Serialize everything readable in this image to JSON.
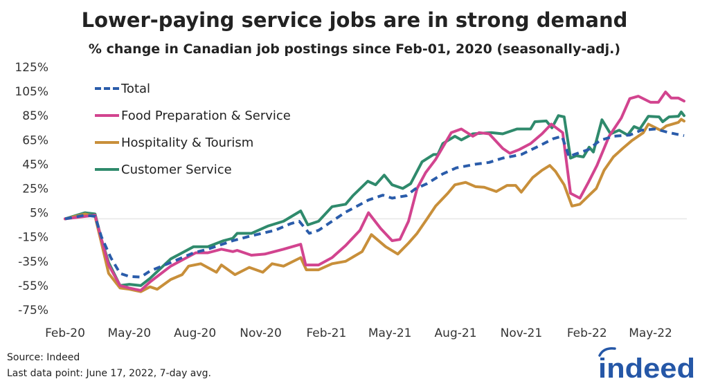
{
  "title": "Lower-paying service jobs are in strong demand",
  "subtitle": "% change in Canadian job postings since Feb-01, 2020 (seasonally-adj.)",
  "source": "Source: Indeed",
  "note": "Last data point: June 17, 2022, 7-day avg.",
  "logo": {
    "text": "indeed",
    "color": "#2557a7"
  },
  "chart_data": {
    "type": "line",
    "title": "Lower-paying service jobs are in strong demand",
    "subtitle": "% change in Canadian job postings since Feb-01, 2020 (seasonally-adj.)",
    "xlabel": "",
    "ylabel": "",
    "xlim": [
      "2020-02-01",
      "2022-06-17"
    ],
    "ylim": [
      -75,
      125
    ],
    "yticks": [
      "125%",
      "105%",
      "85%",
      "65%",
      "45%",
      "25%",
      "5%",
      "-15%",
      "-35%",
      "-55%",
      "-75%"
    ],
    "ytick_values": [
      125,
      105,
      85,
      65,
      45,
      25,
      5,
      -15,
      -35,
      -55,
      -75
    ],
    "xticks": [
      "Feb-20",
      "May-20",
      "Aug-20",
      "Nov-20",
      "Feb-21",
      "May-21",
      "Aug-21",
      "Nov-21",
      "Feb-22",
      "May-22"
    ],
    "xtick_dates": [
      "2020-02-01",
      "2020-05-01",
      "2020-08-01",
      "2020-11-01",
      "2021-02-01",
      "2021-05-01",
      "2021-08-01",
      "2021-11-01",
      "2022-02-01",
      "2022-05-01"
    ],
    "grid": "zero line only",
    "legend": "top-left",
    "series": [
      {
        "name": "Total",
        "color": "#2a5caa",
        "dashed": true,
        "points": [
          [
            "2020-02-01",
            0
          ],
          [
            "2020-02-29",
            3
          ],
          [
            "2020-03-14",
            2
          ],
          [
            "2020-03-23",
            -15
          ],
          [
            "2020-04-05",
            -32
          ],
          [
            "2020-04-18",
            -45
          ],
          [
            "2020-05-01",
            -47.5
          ],
          [
            "2020-05-17",
            -48
          ],
          [
            "2020-05-30",
            -43
          ],
          [
            "2020-06-28",
            -36
          ],
          [
            "2020-07-30",
            -28
          ],
          [
            "2020-08-19",
            -25
          ],
          [
            "2020-09-23",
            -18
          ],
          [
            "2020-10-19",
            -14
          ],
          [
            "2020-11-21",
            -9.5
          ],
          [
            "2020-12-13",
            -4
          ],
          [
            "2020-12-25",
            -2
          ],
          [
            "2021-01-08",
            -12
          ],
          [
            "2021-01-21",
            -9.5
          ],
          [
            "2021-02-09",
            -2
          ],
          [
            "2021-02-28",
            5.5
          ],
          [
            "2021-03-13",
            9.5
          ],
          [
            "2021-04-01",
            15.5
          ],
          [
            "2021-04-21",
            19.5
          ],
          [
            "2021-05-04",
            17
          ],
          [
            "2021-05-24",
            19
          ],
          [
            "2021-06-05",
            24.5
          ],
          [
            "2021-06-22",
            29
          ],
          [
            "2021-07-14",
            37
          ],
          [
            "2021-08-02",
            42
          ],
          [
            "2021-08-29",
            45
          ],
          [
            "2021-09-17",
            46.5
          ],
          [
            "2021-10-06",
            50
          ],
          [
            "2021-11-01",
            53
          ],
          [
            "2021-11-24",
            59.5
          ],
          [
            "2021-12-16",
            66
          ],
          [
            "2021-12-28",
            68
          ],
          [
            "2022-01-07",
            51
          ],
          [
            "2022-01-14",
            53
          ],
          [
            "2022-02-03",
            57
          ],
          [
            "2022-02-19",
            64.5
          ],
          [
            "2022-03-10",
            68
          ],
          [
            "2022-04-02",
            69
          ],
          [
            "2022-04-18",
            73
          ],
          [
            "2022-05-08",
            74
          ],
          [
            "2022-05-27",
            71
          ],
          [
            "2022-06-17",
            68.5
          ]
        ]
      },
      {
        "name": "Food Preparation & Service",
        "color": "#d2448f",
        "dashed": false,
        "points": [
          [
            "2020-02-01",
            0
          ],
          [
            "2020-02-29",
            2
          ],
          [
            "2020-03-14",
            3
          ],
          [
            "2020-03-23",
            -17
          ],
          [
            "2020-04-02",
            -38
          ],
          [
            "2020-04-18",
            -55
          ],
          [
            "2020-05-01",
            -57
          ],
          [
            "2020-05-17",
            -59
          ],
          [
            "2020-05-30",
            -52
          ],
          [
            "2020-06-28",
            -39
          ],
          [
            "2020-08-02",
            -28
          ],
          [
            "2020-08-19",
            -28
          ],
          [
            "2020-09-07",
            -25
          ],
          [
            "2020-09-23",
            -27
          ],
          [
            "2020-09-29",
            -26
          ],
          [
            "2020-10-19",
            -30
          ],
          [
            "2020-11-07",
            -29
          ],
          [
            "2020-12-03",
            -25
          ],
          [
            "2020-12-27",
            -21
          ],
          [
            "2021-01-03",
            -38
          ],
          [
            "2021-01-21",
            -38
          ],
          [
            "2021-02-09",
            -32
          ],
          [
            "2021-02-28",
            -22
          ],
          [
            "2021-03-20",
            -9.5
          ],
          [
            "2021-04-01",
            5
          ],
          [
            "2021-04-18",
            -8
          ],
          [
            "2021-05-04",
            -18
          ],
          [
            "2021-05-15",
            -17
          ],
          [
            "2021-05-27",
            -2
          ],
          [
            "2021-06-08",
            25
          ],
          [
            "2021-06-20",
            38
          ],
          [
            "2021-07-04",
            49
          ],
          [
            "2021-07-26",
            71
          ],
          [
            "2021-08-09",
            74
          ],
          [
            "2021-08-25",
            68
          ],
          [
            "2021-09-03",
            71
          ],
          [
            "2021-09-17",
            70
          ],
          [
            "2021-10-06",
            58
          ],
          [
            "2021-10-16",
            54
          ],
          [
            "2021-10-29",
            57
          ],
          [
            "2021-11-14",
            62
          ],
          [
            "2021-11-30",
            70
          ],
          [
            "2021-12-13",
            78
          ],
          [
            "2021-12-29",
            71
          ],
          [
            "2022-01-09",
            21
          ],
          [
            "2022-01-22",
            17
          ],
          [
            "2022-02-03",
            30
          ],
          [
            "2022-02-15",
            44
          ],
          [
            "2022-03-04",
            68
          ],
          [
            "2022-03-21",
            83
          ],
          [
            "2022-04-02",
            99
          ],
          [
            "2022-04-14",
            101
          ],
          [
            "2022-05-01",
            96
          ],
          [
            "2022-05-12",
            96
          ],
          [
            "2022-05-22",
            104.5
          ],
          [
            "2022-05-30",
            99.5
          ],
          [
            "2022-06-09",
            99.5
          ],
          [
            "2022-06-17",
            97
          ]
        ]
      },
      {
        "name": "Hospitality & Tourism",
        "color": "#c88f3a",
        "dashed": false,
        "points": [
          [
            "2020-02-01",
            0
          ],
          [
            "2020-02-29",
            4
          ],
          [
            "2020-03-14",
            2
          ],
          [
            "2020-03-23",
            -20
          ],
          [
            "2020-04-02",
            -45
          ],
          [
            "2020-04-18",
            -57
          ],
          [
            "2020-05-01",
            -58
          ],
          [
            "2020-05-17",
            -60
          ],
          [
            "2020-05-30",
            -56
          ],
          [
            "2020-06-09",
            -58
          ],
          [
            "2020-06-28",
            -50
          ],
          [
            "2020-07-14",
            -46
          ],
          [
            "2020-07-23",
            -39
          ],
          [
            "2020-08-09",
            -37
          ],
          [
            "2020-08-31",
            -44
          ],
          [
            "2020-09-07",
            -38
          ],
          [
            "2020-09-26",
            -46
          ],
          [
            "2020-10-16",
            -40
          ],
          [
            "2020-11-04",
            -44
          ],
          [
            "2020-11-17",
            -37
          ],
          [
            "2020-12-03",
            -39
          ],
          [
            "2020-12-27",
            -32
          ],
          [
            "2021-01-04",
            -42
          ],
          [
            "2021-01-21",
            -42
          ],
          [
            "2021-02-09",
            -37
          ],
          [
            "2021-02-28",
            -35
          ],
          [
            "2021-03-23",
            -27
          ],
          [
            "2021-04-05",
            -13
          ],
          [
            "2021-04-25",
            -23
          ],
          [
            "2021-05-12",
            -29
          ],
          [
            "2021-05-27",
            -20
          ],
          [
            "2021-06-08",
            -12
          ],
          [
            "2021-06-22",
            0
          ],
          [
            "2021-07-04",
            10.5
          ],
          [
            "2021-07-21",
            21
          ],
          [
            "2021-07-31",
            28
          ],
          [
            "2021-08-15",
            30
          ],
          [
            "2021-08-29",
            26.5
          ],
          [
            "2021-09-10",
            26
          ],
          [
            "2021-09-27",
            22.5
          ],
          [
            "2021-10-12",
            27.5
          ],
          [
            "2021-10-24",
            27.5
          ],
          [
            "2021-11-01",
            22
          ],
          [
            "2021-11-17",
            34
          ],
          [
            "2021-11-30",
            40
          ],
          [
            "2021-12-11",
            44
          ],
          [
            "2021-12-19",
            39
          ],
          [
            "2021-12-31",
            28
          ],
          [
            "2022-01-11",
            10.5
          ],
          [
            "2022-01-22",
            12
          ],
          [
            "2022-02-05",
            20
          ],
          [
            "2022-02-14",
            25
          ],
          [
            "2022-02-25",
            40
          ],
          [
            "2022-03-10",
            51
          ],
          [
            "2022-03-23",
            58
          ],
          [
            "2022-04-05",
            64.5
          ],
          [
            "2022-04-21",
            71
          ],
          [
            "2022-04-28",
            78
          ],
          [
            "2022-05-15",
            73
          ],
          [
            "2022-05-23",
            76.5
          ],
          [
            "2022-06-09",
            79.5
          ],
          [
            "2022-06-13",
            82
          ],
          [
            "2022-06-17",
            80.5
          ]
        ]
      },
      {
        "name": "Customer Service",
        "color": "#2f8a6c",
        "dashed": false,
        "points": [
          [
            "2020-02-01",
            0
          ],
          [
            "2020-02-29",
            5
          ],
          [
            "2020-03-14",
            4
          ],
          [
            "2020-03-23",
            -17
          ],
          [
            "2020-04-02",
            -36
          ],
          [
            "2020-04-18",
            -55
          ],
          [
            "2020-05-01",
            -54
          ],
          [
            "2020-05-17",
            -55
          ],
          [
            "2020-05-30",
            -49
          ],
          [
            "2020-06-28",
            -33
          ],
          [
            "2020-07-30",
            -23
          ],
          [
            "2020-08-19",
            -23
          ],
          [
            "2020-09-10",
            -18
          ],
          [
            "2020-09-23",
            -16
          ],
          [
            "2020-09-29",
            -12
          ],
          [
            "2020-10-19",
            -12
          ],
          [
            "2020-11-11",
            -6
          ],
          [
            "2020-12-03",
            -2
          ],
          [
            "2020-12-27",
            6.5
          ],
          [
            "2021-01-06",
            -5
          ],
          [
            "2021-01-21",
            -2
          ],
          [
            "2021-02-09",
            10
          ],
          [
            "2021-02-28",
            12
          ],
          [
            "2021-03-10",
            19
          ],
          [
            "2021-03-31",
            31
          ],
          [
            "2021-04-11",
            28
          ],
          [
            "2021-04-23",
            36
          ],
          [
            "2021-05-04",
            28
          ],
          [
            "2021-05-19",
            25
          ],
          [
            "2021-05-30",
            29
          ],
          [
            "2021-06-15",
            47
          ],
          [
            "2021-07-01",
            53
          ],
          [
            "2021-07-07",
            53
          ],
          [
            "2021-07-14",
            62
          ],
          [
            "2021-07-31",
            68
          ],
          [
            "2021-08-09",
            65
          ],
          [
            "2021-08-25",
            70
          ],
          [
            "2021-09-20",
            71
          ],
          [
            "2021-10-06",
            70
          ],
          [
            "2021-10-26",
            74
          ],
          [
            "2021-11-14",
            74
          ],
          [
            "2021-11-20",
            80
          ],
          [
            "2021-12-06",
            80.6
          ],
          [
            "2021-12-14",
            75
          ],
          [
            "2021-12-23",
            85
          ],
          [
            "2021-12-31",
            84
          ],
          [
            "2022-01-09",
            50
          ],
          [
            "2022-01-17",
            52
          ],
          [
            "2022-01-27",
            51
          ],
          [
            "2022-02-04",
            59
          ],
          [
            "2022-02-10",
            55
          ],
          [
            "2022-02-22",
            81.6
          ],
          [
            "2022-03-06",
            70
          ],
          [
            "2022-03-18",
            73
          ],
          [
            "2022-03-30",
            69
          ],
          [
            "2022-04-08",
            76
          ],
          [
            "2022-04-16",
            74
          ],
          [
            "2022-04-28",
            84.5
          ],
          [
            "2022-05-13",
            84
          ],
          [
            "2022-05-18",
            80
          ],
          [
            "2022-05-27",
            84
          ],
          [
            "2022-06-09",
            84.5
          ],
          [
            "2022-06-13",
            88
          ],
          [
            "2022-06-17",
            85
          ]
        ]
      }
    ]
  }
}
